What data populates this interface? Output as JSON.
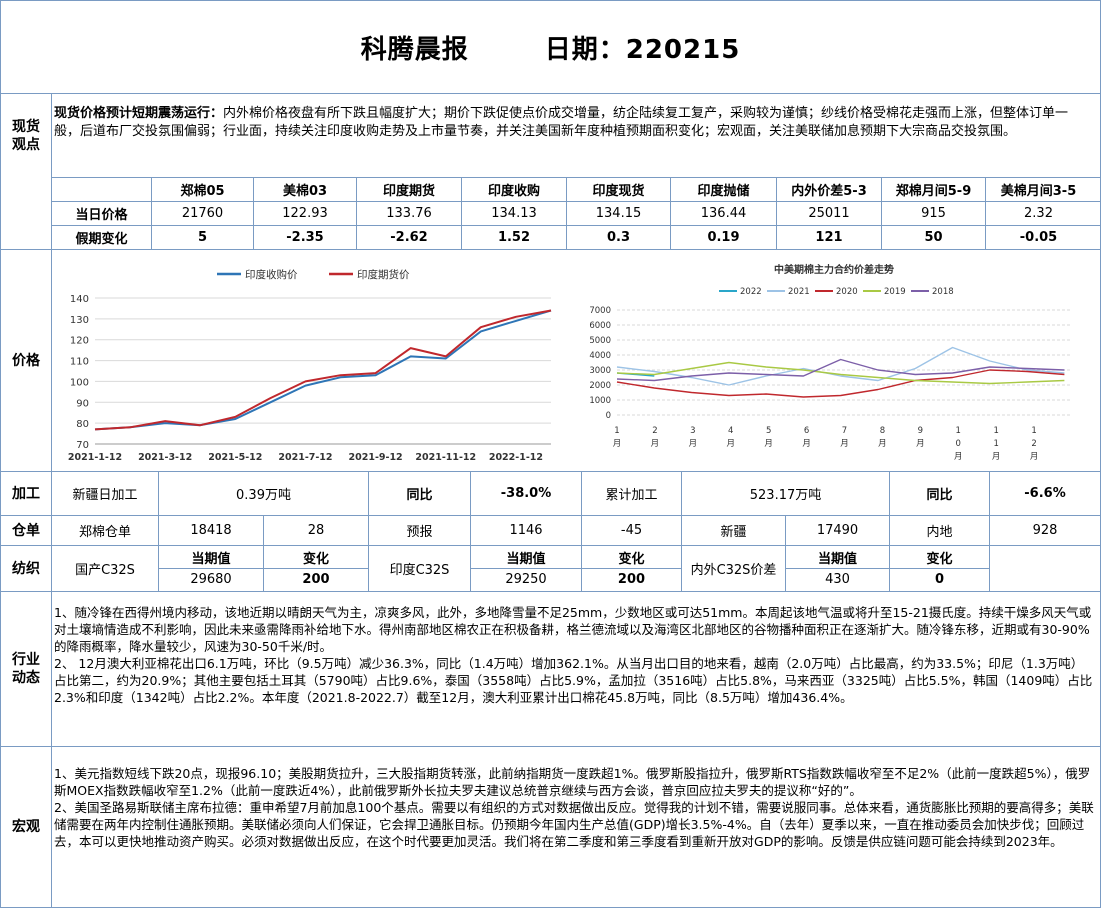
{
  "header": {
    "title": "科腾晨报",
    "date_label": "日期：220215"
  },
  "spot": {
    "label": "现货\n观点",
    "lead": "现货价格预计短期震荡运行：",
    "body": "内外棉价格夜盘有所下跌且幅度扩大；期价下跌促使点价成交增量，纺企陆续复工复产，采购较为谨慎；纱线价格受棉花走强而上涨，但整体订单一般，后道布厂交投氛围偏弱；行业面，持续关注印度收购走势及上市量节奏，并关注美国新年度种植预期面积变化；宏观面，关注美联储加息预期下大宗商品交投氛围。"
  },
  "price_table": {
    "headers": [
      "郑棉05",
      "美棉03",
      "印度期货",
      "印度收购",
      "印度现货",
      "印度抛储",
      "内外价差5-3",
      "郑棉月间5-9",
      "美棉月间3-5"
    ],
    "rows": [
      {
        "label": "当日价格",
        "values": [
          "21760",
          "122.93",
          "133.76",
          "134.13",
          "134.15",
          "136.44",
          "25011",
          "915",
          "2.32"
        ]
      },
      {
        "label": "假期变化",
        "values": [
          "5",
          "-2.35",
          "-2.62",
          "1.52",
          "0.3",
          "0.19",
          "121",
          "50",
          "-0.05"
        ]
      }
    ]
  },
  "price_label": "价格",
  "chart_data": [
    {
      "type": "line",
      "title": "",
      "legend_position": "top",
      "x": [
        "2021-1-12",
        "2021-2-12",
        "2021-3-12",
        "2021-4-12",
        "2021-5-12",
        "2021-6-12",
        "2021-7-12",
        "2021-8-12",
        "2021-9-12",
        "2021-10-12",
        "2021-11-12",
        "2021-12-12",
        "2022-1-12",
        "2022-2-12"
      ],
      "xticks": [
        "2021-1-12",
        "2021-3-12",
        "2021-5-12",
        "2021-7-12",
        "2021-9-12",
        "2021-11-12",
        "2022-1-12"
      ],
      "ylim": [
        70,
        140
      ],
      "yticks": [
        70,
        80,
        90,
        100,
        110,
        120,
        130,
        140
      ],
      "grid": true,
      "series": [
        {
          "name": "印度收购价",
          "color": "#2e75b6",
          "values": [
            77,
            78,
            80,
            79,
            82,
            90,
            98,
            102,
            103,
            112,
            111,
            124,
            129,
            134
          ]
        },
        {
          "name": "印度期货价",
          "color": "#c0282d",
          "values": [
            77,
            78,
            81,
            79,
            83,
            92,
            100,
            103,
            104,
            116,
            112,
            126,
            131,
            134
          ]
        }
      ]
    },
    {
      "type": "line",
      "title": "中美期棉主力合约价差走势",
      "legend_position": "top",
      "xticks": [
        "1\n月",
        "2\n月",
        "3\n月",
        "4\n月",
        "5\n月",
        "6\n月",
        "7\n月",
        "8\n月",
        "9\n月",
        "1\n0\n月",
        "1\n1\n月",
        "1\n2\n月"
      ],
      "ylim": [
        0,
        7000
      ],
      "yticks": [
        0,
        1000,
        2000,
        3000,
        4000,
        5000,
        6000,
        7000
      ],
      "grid": true,
      "series": [
        {
          "name": "2022",
          "color": "#2aa6c9",
          "values": [
            2800,
            2600
          ]
        },
        {
          "name": "2021",
          "color": "#9dc3e6",
          "values": [
            3200,
            2900,
            2500,
            2000,
            2600,
            3100,
            2600,
            2300,
            3100,
            4500,
            3600,
            3000,
            2800
          ]
        },
        {
          "name": "2020",
          "color": "#c0282d",
          "values": [
            2200,
            1800,
            1500,
            1300,
            1400,
            1200,
            1300,
            1700,
            2300,
            2500,
            3000,
            2900,
            2700
          ]
        },
        {
          "name": "2019",
          "color": "#a9c944",
          "values": [
            2800,
            2700,
            3100,
            3500,
            3200,
            3000,
            2700,
            2500,
            2300,
            2200,
            2100,
            2200,
            2300
          ]
        },
        {
          "name": "2018",
          "color": "#7c5fa8",
          "values": [
            2400,
            2300,
            2600,
            2800,
            2700,
            2600,
            3700,
            3000,
            2700,
            2800,
            3200,
            3100,
            3000
          ]
        }
      ]
    }
  ],
  "processing": {
    "label": "加工",
    "cells": [
      "新疆日加工",
      "0.39万吨",
      "同比",
      "-38.0%",
      "累计加工",
      "523.17万吨",
      "同比",
      "-6.6%"
    ]
  },
  "warehouse": {
    "label": "仓单",
    "cells": [
      "郑棉仓单",
      "18418",
      "28",
      "预报",
      "1146",
      "-45",
      "新疆",
      "17490",
      "内地",
      "928"
    ]
  },
  "textile": {
    "label": "纺织",
    "groups": [
      {
        "name": "国产C32S",
        "h1": "当期值",
        "h2": "变化",
        "v1": "29680",
        "v2": "200"
      },
      {
        "name": "印度C32S",
        "h1": "当期值",
        "h2": "变化",
        "v1": "29250",
        "v2": "200"
      },
      {
        "name": "内外C32S价差",
        "h1": "当期值",
        "h2": "变化",
        "v1": "430",
        "v2": "0"
      }
    ]
  },
  "industry": {
    "label": "行业\n动态",
    "p1": "1、随冷锋在西得州境内移动，该地近期以晴朗天气为主，凉爽多风，此外，多地降雪量不足25mm，少数地区或可达51mm。本周起该地气温或将升至15-21摄氏度。持续干燥多风天气或对土壤墒情造成不利影响，因此未来亟需降雨补给地下水。得州南部地区棉农正在积极备耕，格兰德流域以及海湾区北部地区的谷物播种面积正在逐渐扩大。随冷锋东移，近期或有30-90%的降雨概率，降水量较少，风速为30-50千米/时。",
    "p2": "2、 12月澳大利亚棉花出口6.1万吨，环比（9.5万吨）减少36.3%，同比（1.4万吨）增加362.1%。从当月出口目的地来看，越南（2.0万吨）占比最高，约为33.5%；印尼（1.3万吨）占比第二，约为20.9%；其他主要包括土耳其（5790吨）占比9.6%，泰国（3558吨）占比5.9%，孟加拉（3516吨）占比5.8%，马来西亚（3325吨）占比5.5%，韩国（1409吨）占比2.3%和印度（1342吨）占比2.2%。本年度（2021.8-2022.7）截至12月，澳大利亚累计出口棉花45.8万吨，同比（8.5万吨）增加436.4%。"
  },
  "macro": {
    "label": "宏观",
    "p1": "1、美元指数短线下跌20点，现报96.10；美股期货拉升，三大股指期货转涨，此前纳指期货一度跌超1%。俄罗斯股指拉升，俄罗斯RTS指数跌幅收窄至不足2%（此前一度跌超5%），俄罗斯MOEX指数跌幅收窄至1.2%（此前一度跌近4%），此前俄罗斯外长拉夫罗夫建议总统普京继续与西方会谈，普京回应拉夫罗夫的提议称“好的”。",
    "p2": "2、美国圣路易斯联储主席布拉德：重申希望7月前加息100个基点。需要以有组织的方式对数据做出反应。觉得我的计划不错，需要说服同事。总体来看，通货膨胀比预期的要高得多；美联储需要在两年内控制住通胀预期。美联储必须向人们保证，它会捍卫通胀目标。仍预期今年国内生产总值(GDP)增长3.5%-4%。自（去年）夏季以来，一直在推动委员会加快步伐；回顾过去，本可以更快地推动资产购买。必须对数据做出反应，在这个时代要更加灵活。我们将在第二季度和第三季度看到重新开放对GDP的影响。反馈是供应链问题可能会持续到2023年。"
  }
}
